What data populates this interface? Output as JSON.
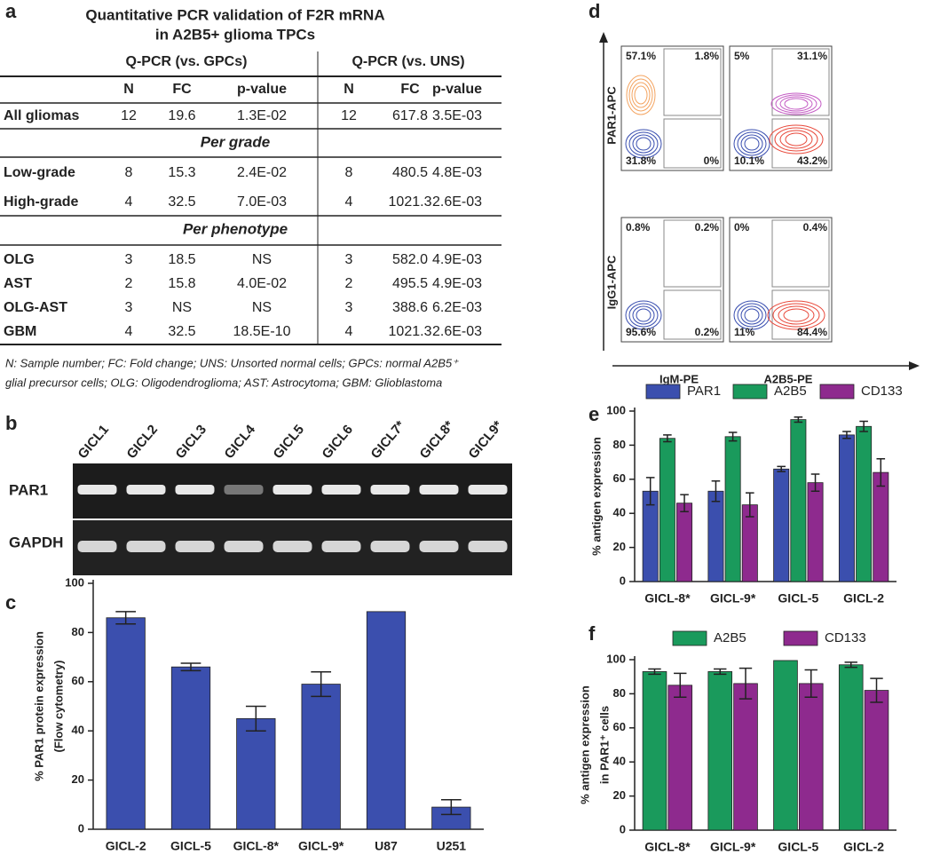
{
  "panel_labels": [
    "a",
    "b",
    "c",
    "d",
    "e",
    "f"
  ],
  "table": {
    "title": [
      "Quantitative PCR validation of F2R mRNA",
      "in A2B5+  glioma TPCs"
    ],
    "groups": [
      "Q-PCR (vs. GPCs)",
      "Q-PCR (vs. UNS)"
    ],
    "columns": [
      "N",
      "FC",
      "p-value",
      "N",
      "FC",
      "p-value"
    ],
    "body": [
      {
        "label": "All gliomas",
        "cells": [
          "12",
          "19.6",
          "1.3E-02",
          "12",
          "617.8",
          "3.5E-03"
        ]
      },
      {
        "section": "Per grade"
      },
      {
        "label": "Low-grade",
        "cells": [
          "8",
          "15.3",
          "2.4E-02",
          "8",
          "480.5",
          "4.8E-03"
        ]
      },
      {
        "label": "High-grade",
        "cells": [
          "4",
          "32.5",
          "7.0E-03",
          "4",
          "1021.3",
          "2.6E-03"
        ]
      },
      {
        "section": "Per phenotype"
      },
      {
        "label": "OLG",
        "cells": [
          "3",
          "18.5",
          "NS",
          "3",
          "582.0",
          "4.9E-03"
        ]
      },
      {
        "label": "AST",
        "cells": [
          "2",
          "15.8",
          "4.0E-02",
          "2",
          "495.5",
          "4.9E-03"
        ]
      },
      {
        "label": "OLG-AST",
        "cells": [
          "3",
          "NS",
          "NS",
          "3",
          "388.6",
          "6.2E-03"
        ]
      },
      {
        "label": "GBM",
        "cells": [
          "4",
          "32.5",
          "18.5E-10",
          "4",
          "1021.3",
          "2.6E-03"
        ]
      }
    ],
    "footnote": [
      "N: Sample number; FC: Fold change; UNS: Unsorted normal cells; GPCs: normal A2B5⁺",
      "glial precursor cells; OLG: Oligodendroglioma; AST: Astrocytoma; GBM: Glioblastoma"
    ]
  },
  "gel": {
    "lanes": [
      "GICL1",
      "GICL2",
      "GICL3",
      "GICL4",
      "GICL5",
      "GICL6",
      "GICL7*",
      "GICL8*",
      "GICL9*"
    ],
    "rows": [
      "PAR1",
      "GAPDH"
    ]
  },
  "flow": {
    "row_labels": [
      "PAR1-APC",
      "IgG1-APC"
    ],
    "col_labels": [
      "IgM-PE",
      "A2B5-PE"
    ],
    "plots": [
      [
        "57.1%",
        "1.8%",
        "31.8%",
        "0%"
      ],
      [
        "5%",
        "31.1%",
        "10.1%",
        "43.2%"
      ],
      [
        "0.8%",
        "0.2%",
        "95.6%",
        "0.2%"
      ],
      [
        "0%",
        "0.4%",
        "11%",
        "84.4%"
      ]
    ]
  },
  "chart_data": [
    {
      "type": "bar",
      "ylabel": [
        "% PAR1 protein expression",
        "(Flow cytometry)"
      ],
      "categories": [
        "GICL-2",
        "GICL-5",
        "GICL-8*",
        "GICL-9*",
        "U87",
        "U251"
      ],
      "values": [
        86,
        66,
        45,
        59,
        88.5,
        9
      ],
      "errors": [
        2.5,
        1.5,
        5,
        5,
        null,
        3
      ],
      "color": "#3b4fae",
      "ylim": [
        0,
        100
      ],
      "yticks": [
        0,
        20,
        40,
        60,
        80,
        100
      ]
    },
    {
      "type": "bar",
      "ylabel": [
        "% antigen expression"
      ],
      "categories": [
        "GICL-8*",
        "GICL-9*",
        "GICL-5",
        "GICL-2"
      ],
      "series": [
        {
          "name": "PAR1",
          "color": "#3b4fae",
          "values": [
            53,
            53,
            66,
            86
          ],
          "errors": [
            8,
            6,
            1.5,
            2
          ]
        },
        {
          "name": "A2B5",
          "color": "#1a9a5c",
          "values": [
            84,
            85,
            95,
            91
          ],
          "errors": [
            2,
            2.5,
            1.5,
            3
          ]
        },
        {
          "name": "CD133",
          "color": "#8e2a8e",
          "values": [
            46,
            45,
            58,
            64
          ],
          "errors": [
            5,
            7,
            5,
            8
          ]
        }
      ],
      "ylim": [
        0,
        100
      ],
      "yticks": [
        0,
        20,
        40,
        60,
        80,
        100
      ]
    },
    {
      "type": "bar",
      "ylabel": [
        "% antigen expression",
        "in PAR1⁺ cells"
      ],
      "categories": [
        "GICL-8*",
        "GICL-9*",
        "GICL-5",
        "GICL-2"
      ],
      "series": [
        {
          "name": "A2B5",
          "color": "#1a9a5c",
          "values": [
            93,
            93,
            99.5,
            97
          ],
          "errors": [
            1.5,
            1.5,
            null,
            1.5
          ]
        },
        {
          "name": "CD133",
          "color": "#8e2a8e",
          "values": [
            85,
            86,
            86,
            82
          ],
          "errors": [
            7,
            9,
            8,
            7
          ]
        }
      ],
      "ylim": [
        0,
        100
      ],
      "yticks": [
        0,
        20,
        40,
        60,
        80,
        100
      ]
    }
  ]
}
